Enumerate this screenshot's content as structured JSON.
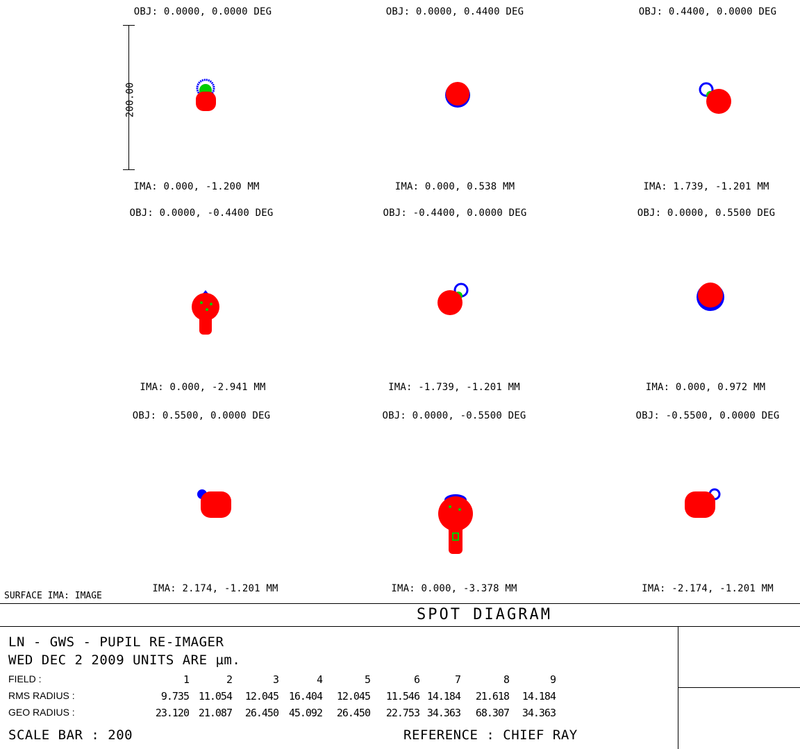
{
  "plots": [
    {
      "obj": "OBJ: 0.0000, 0.0000 DEG",
      "ima": "IMA: 0.000, -1.200 MM"
    },
    {
      "obj": "OBJ: 0.0000, 0.4400 DEG",
      "ima": "IMA: 0.000, 0.538 MM"
    },
    {
      "obj": "OBJ: 0.4400, 0.0000 DEG",
      "ima": "IMA: 1.739, -1.201 MM"
    },
    {
      "obj": "OBJ: 0.0000, -0.4400 DEG",
      "ima": "IMA: 0.000, -2.941 MM"
    },
    {
      "obj": "OBJ: -0.4400, 0.0000 DEG",
      "ima": "IMA: -1.739, -1.201 MM"
    },
    {
      "obj": "OBJ: 0.0000, 0.5500 DEG",
      "ima": "IMA: 0.000, 0.972 MM"
    },
    {
      "obj": "OBJ: 0.5500, 0.0000 DEG",
      "ima": "IMA: 2.174, -1.201 MM"
    },
    {
      "obj": "OBJ: 0.0000, -0.5500 DEG",
      "ima": "IMA: 0.000, -3.378 MM"
    },
    {
      "obj": "OBJ: -0.5500, 0.0000 DEG",
      "ima": "IMA: -2.174, -1.201 MM"
    }
  ],
  "scale_bar_label": "200.00",
  "surface_label": "SURFACE IMA: IMAGE",
  "title": "SPOT DIAGRAM",
  "titleblock": {
    "line1": "LN - GWS - PUPIL RE-IMAGER",
    "line2": "WED DEC 2 2009  UNITS ARE µm.",
    "field_label": "FIELD      :",
    "rms_label": "RMS RADIUS :",
    "geo_label": "GEO RADIUS :",
    "fields": [
      "1",
      "2",
      "3",
      "4",
      "5",
      "6",
      "7",
      "8",
      "9"
    ],
    "rms": [
      "9.735",
      "11.054",
      "12.045",
      "16.404",
      "12.045",
      "11.546",
      "14.184",
      "21.618",
      "14.184"
    ],
    "geo": [
      "23.120",
      "21.087",
      "26.450",
      "45.092",
      "26.450",
      "22.753",
      "34.363",
      "68.307",
      "34.363"
    ],
    "scale_bar": "SCALE BAR   :      200",
    "reference": "REFERENCE   : CHIEF RAY"
  },
  "colors": {
    "wavelength_1": "#0000ff",
    "wavelength_2": "#00cc00",
    "wavelength_3": "#ff0000"
  }
}
